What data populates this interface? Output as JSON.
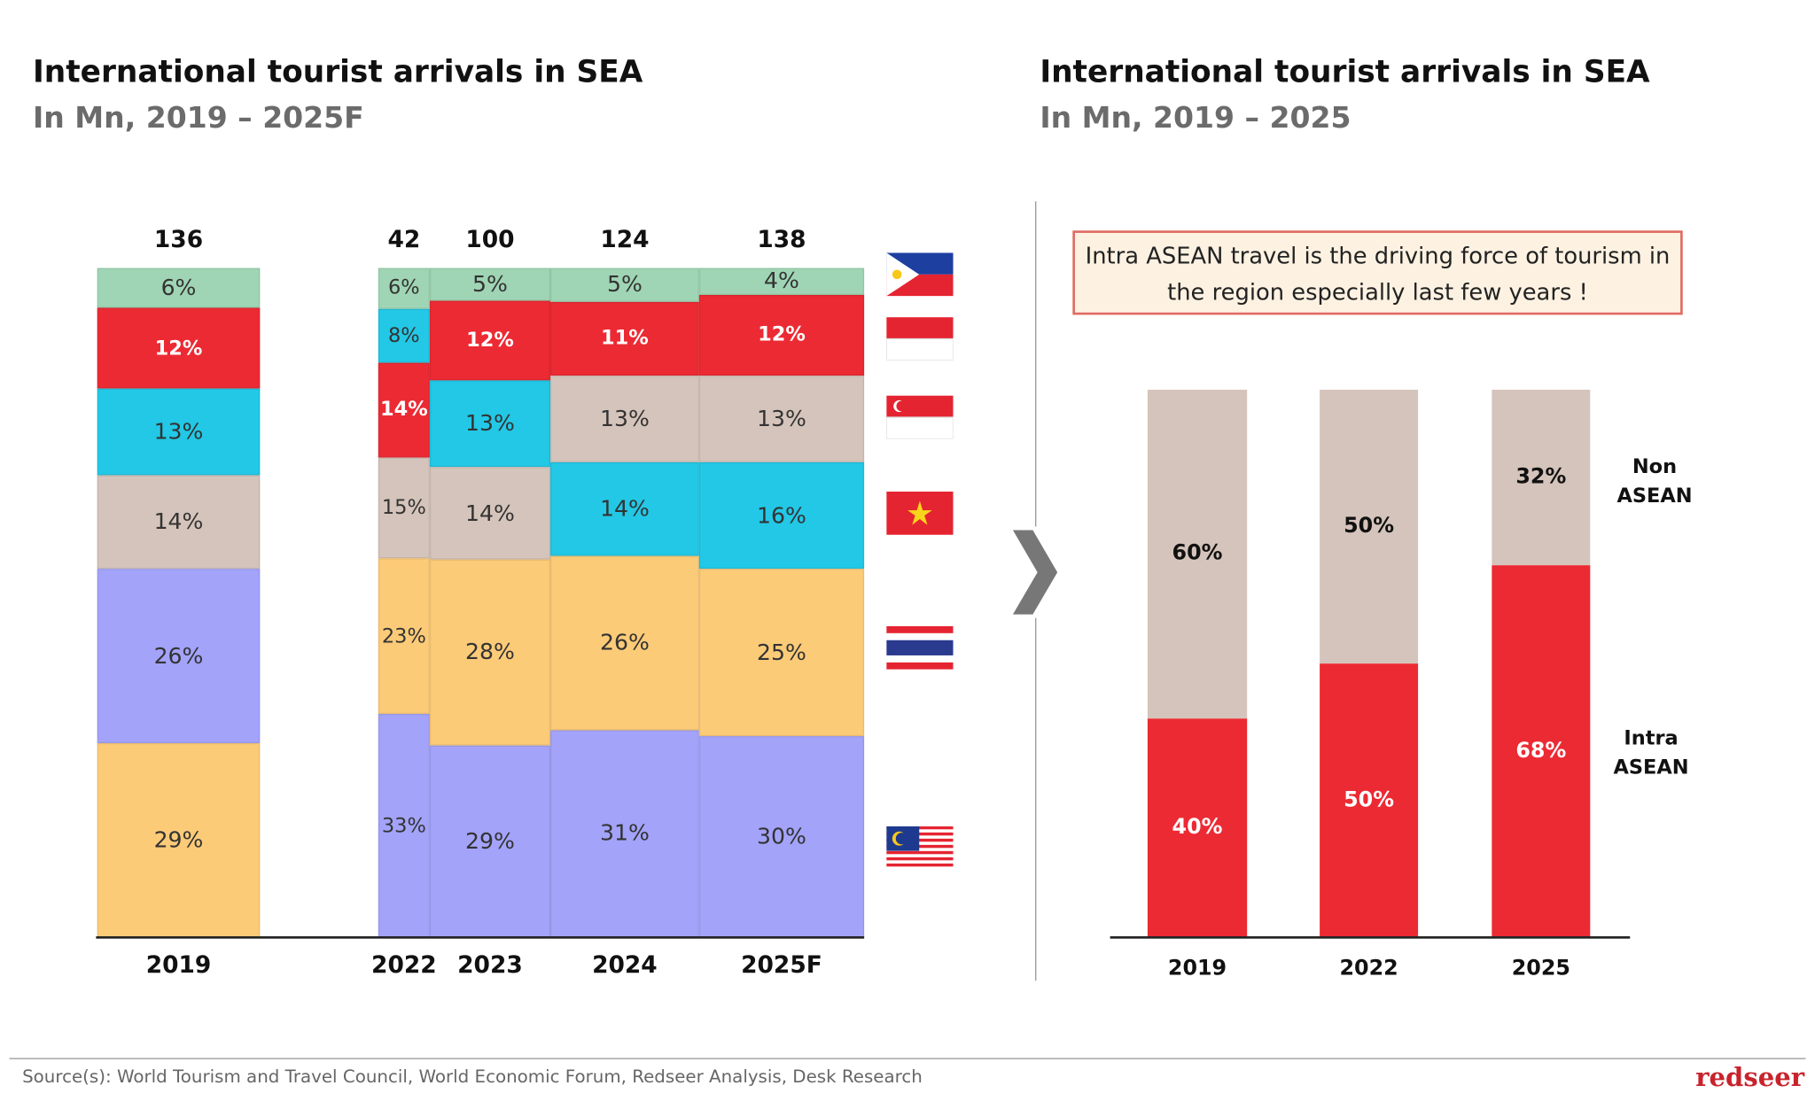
{
  "left": {
    "title": "International tourist arrivals in SEA",
    "subtitle": "In Mn, 2019 – 2025F"
  },
  "right": {
    "title": "International tourist arrivals in SEA",
    "subtitle": "In Mn, 2019 – 2025",
    "note": "Intra ASEAN travel is the driving force of tourism in the region especially last few years !"
  },
  "chart_data": [
    {
      "type": "bar",
      "stacked": true,
      "title": "International tourist arrivals in SEA",
      "subtitle": "In Mn, 2019 – 2025F",
      "categories": [
        "2019",
        "2022",
        "2023",
        "2024",
        "2025F"
      ],
      "totals": [
        "136",
        "42",
        "100",
        "124",
        "138"
      ],
      "legend_flags": [
        "philippines-flag",
        "indonesia-flag",
        "singapore-flag",
        "vietnam-flag",
        "thailand-flag",
        "malaysia-flag"
      ],
      "columns": [
        {
          "year": "2019",
          "segments": [
            {
              "value": 6,
              "label": "6%",
              "color": "#9fd5b4"
            },
            {
              "value": 12,
              "label": "12%",
              "color": "#ec2a33"
            },
            {
              "value": 13,
              "label": "13%",
              "color": "#22c8e6"
            },
            {
              "value": 14,
              "label": "14%",
              "color": "#d5c4bb"
            },
            {
              "value": 26,
              "label": "26%",
              "color": "#a3a3fa"
            },
            {
              "value": 29,
              "label": "29%",
              "color": "#fccb78"
            }
          ]
        },
        {
          "year": "2022",
          "segments": [
            {
              "value": 6,
              "label": "6%",
              "color": "#9fd5b4"
            },
            {
              "value": 8,
              "label": "8%",
              "color": "#22c8e6"
            },
            {
              "value": 14,
              "label": "14%",
              "color": "#ec2a33"
            },
            {
              "value": 15,
              "label": "15%",
              "color": "#d5c4bb"
            },
            {
              "value": 23,
              "label": "23%",
              "color": "#fccb78"
            },
            {
              "value": 33,
              "label": "33%",
              "color": "#a3a3fa"
            }
          ]
        },
        {
          "year": "2023",
          "segments": [
            {
              "value": 5,
              "label": "5%",
              "color": "#9fd5b4"
            },
            {
              "value": 12,
              "label": "12%",
              "color": "#ec2a33"
            },
            {
              "value": 13,
              "label": "13%",
              "color": "#22c8e6"
            },
            {
              "value": 14,
              "label": "14%",
              "color": "#d5c4bb"
            },
            {
              "value": 28,
              "label": "28%",
              "color": "#fccb78"
            },
            {
              "value": 29,
              "label": "29%",
              "color": "#a3a3fa"
            }
          ]
        },
        {
          "year": "2024",
          "segments": [
            {
              "value": 5,
              "label": "5%",
              "color": "#9fd5b4"
            },
            {
              "value": 11,
              "label": "11%",
              "color": "#ec2a33"
            },
            {
              "value": 13,
              "label": "13%",
              "color": "#d5c4bb"
            },
            {
              "value": 14,
              "label": "14%",
              "color": "#22c8e6"
            },
            {
              "value": 26,
              "label": "26%",
              "color": "#fccb78"
            },
            {
              "value": 31,
              "label": "31%",
              "color": "#a3a3fa"
            }
          ]
        },
        {
          "year": "2025F",
          "segments": [
            {
              "value": 4,
              "label": "4%",
              "color": "#9fd5b4"
            },
            {
              "value": 12,
              "label": "12%",
              "color": "#ec2a33"
            },
            {
              "value": 13,
              "label": "13%",
              "color": "#d5c4bb"
            },
            {
              "value": 16,
              "label": "16%",
              "color": "#22c8e6"
            },
            {
              "value": 25,
              "label": "25%",
              "color": "#fccb78"
            },
            {
              "value": 30,
              "label": "30%",
              "color": "#a3a3fa"
            }
          ]
        }
      ]
    },
    {
      "type": "bar",
      "stacked": true,
      "title": "International tourist arrivals in SEA",
      "subtitle": "In Mn, 2019 – 2025",
      "categories": [
        "2019",
        "2022",
        "2025"
      ],
      "series": [
        {
          "name": "Intra ASEAN",
          "values": [
            40,
            50,
            68
          ],
          "labels": [
            "40%",
            "50%",
            "68%"
          ],
          "color": "#ec2a33"
        },
        {
          "name": "Non ASEAN",
          "values": [
            60,
            50,
            32
          ],
          "labels": [
            "60%",
            "50%",
            "32%"
          ],
          "color": "#d5c4bb"
        }
      ],
      "legend_labels": {
        "non": [
          "Non",
          "ASEAN"
        ],
        "intra": [
          "Intra",
          "ASEAN"
        ]
      }
    }
  ],
  "footer": {
    "source": "Source(s): World Tourism and Travel Council, World Economic Forum, Redseer Analysis, Desk Research",
    "logo": "redseer"
  }
}
